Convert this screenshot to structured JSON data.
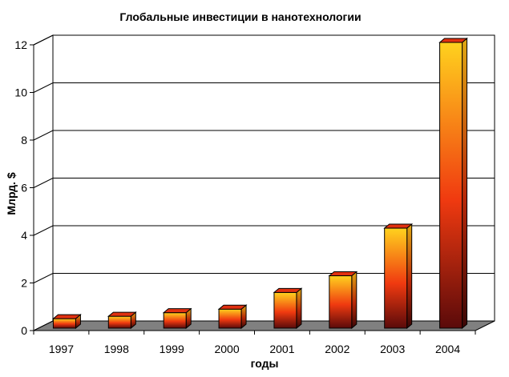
{
  "chart_data": {
    "type": "bar",
    "title": "Глобальные инвестиции в нанотехнологии",
    "xlabel": "годы",
    "ylabel": "Млрд. $",
    "categories": [
      "1997",
      "1998",
      "1999",
      "2000",
      "2001",
      "2002",
      "2003",
      "2004"
    ],
    "values": [
      0.4,
      0.5,
      0.65,
      0.8,
      1.5,
      2.2,
      4.2,
      12.0
    ],
    "ylim": [
      0,
      12
    ],
    "yticks": [
      "0",
      "2",
      "4",
      "6",
      "8",
      "10",
      "12"
    ],
    "grid": true,
    "legend": "none",
    "style": "3d",
    "colors": {
      "bar_top": "#ffd21e",
      "bar_mid": "#f03a10",
      "bar_bottom": "#5a0a0a",
      "floor": "#808080",
      "grid": "#000000"
    }
  }
}
